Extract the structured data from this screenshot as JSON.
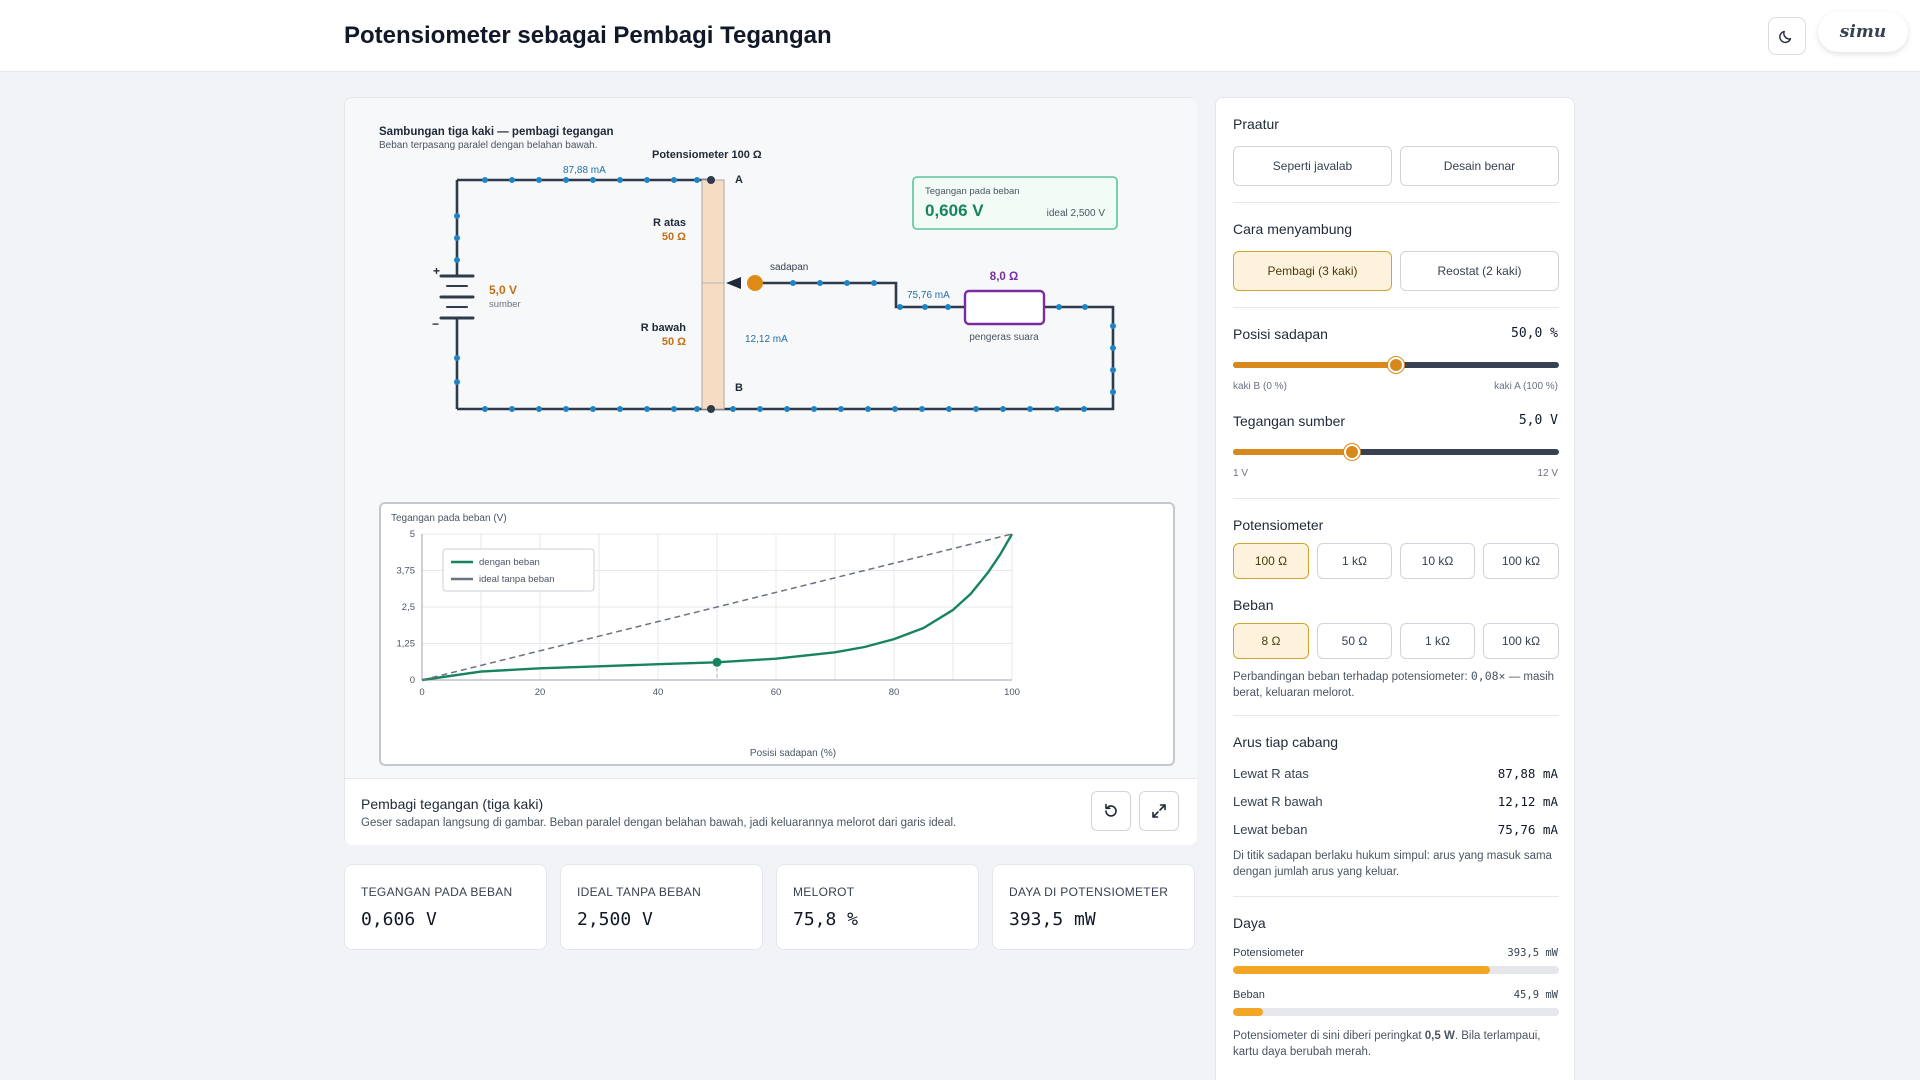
{
  "header": {
    "title": "Potensiometer sebagai Pembagi Tegangan",
    "logo": "simu"
  },
  "circuit": {
    "heading": "Sambungan tiga kaki — pembagi tegangan",
    "subheading": "Beban terpasang paralel dengan belahan bawah.",
    "top_current": "87,88 mA",
    "pot_label": "Potensiometer 100 Ω",
    "node_a": "A",
    "node_b": "B",
    "r_top_label": "R atas",
    "r_top_value": "50 Ω",
    "r_bottom_label": "R bawah",
    "r_bottom_value": "50 Ω",
    "source_voltage": "5,0 V",
    "source_label": "sumber",
    "plus": "+",
    "minus": "−",
    "tap_label": "sadapan",
    "bottom_current": "12,12 mA",
    "load_current": "75,76 mA",
    "load_value": "8,0 Ω",
    "load_label": "pengeras suara",
    "meter_label": "Tegangan pada beban",
    "meter_value": "0,606 V",
    "meter_ideal": "ideal 2,500 V"
  },
  "chart_data": {
    "type": "line",
    "ylabel": "Tegangan pada beban (V)",
    "xlabel": "Posisi sadapan (%)",
    "xlim": [
      0,
      100
    ],
    "ylim": [
      0,
      5
    ],
    "x_ticks": [
      "0",
      "20",
      "40",
      "60",
      "80",
      "100"
    ],
    "y_ticks": [
      "0",
      "1,25",
      "2,5",
      "3,75",
      "5"
    ],
    "grid": true,
    "legend_position": "top-left",
    "series": [
      {
        "name": "dengan beban",
        "color": "#17845f",
        "style": "solid",
        "x": [
          0,
          10,
          20,
          30,
          40,
          50,
          60,
          70,
          75,
          80,
          85,
          90,
          93,
          96,
          98,
          100
        ],
        "y": [
          0,
          0.29,
          0.4,
          0.47,
          0.54,
          0.606,
          0.73,
          0.95,
          1.13,
          1.4,
          1.78,
          2.4,
          2.95,
          3.7,
          4.3,
          5.0
        ]
      },
      {
        "name": "ideal tanpa beban",
        "color": "#6b7280",
        "style": "dashed",
        "x": [
          0,
          100
        ],
        "y": [
          0,
          5
        ]
      }
    ],
    "marker": {
      "x": 50,
      "y": 0.606
    }
  },
  "sim_footer": {
    "title": "Pembagi tegangan (tiga kaki)",
    "subtitle": "Geser sadapan langsung di gambar. Beban paralel dengan belahan bawah, jadi keluarannya melorot dari garis ideal."
  },
  "stats": [
    {
      "label": "TEGANGAN PADA BEBAN",
      "value": "0,606 V"
    },
    {
      "label": "IDEAL TANPA BEBAN",
      "value": "2,500 V"
    },
    {
      "label": "MELOROT",
      "value": "75,8 %"
    },
    {
      "label": "DAYA DI POTENSIOMETER",
      "value": "393,5 mW"
    }
  ],
  "side": {
    "preset_title": "Praatur",
    "preset_buttons": [
      "Seperti javalab",
      "Desain benar"
    ],
    "connect_title": "Cara menyambung",
    "connect_buttons": [
      "Pembagi (3 kaki)",
      "Reostat (2 kaki)"
    ],
    "tap_title": "Posisi sadapan",
    "tap_value": "50,0 %",
    "tap_fraction": 0.5,
    "tap_min": "kaki B (0 %)",
    "tap_max": "kaki A (100 %)",
    "src_title": "Tegangan sumber",
    "src_value": "5,0 V",
    "src_fraction": 0.364,
    "src_min": "1 V",
    "src_max": "12 V",
    "pot_title": "Potensiometer",
    "pot_options": [
      "100 Ω",
      "1 kΩ",
      "10 kΩ",
      "100 kΩ"
    ],
    "load_title": "Beban",
    "load_options": [
      "8 Ω",
      "50 Ω",
      "1 kΩ",
      "100 kΩ"
    ],
    "ratio_note_prefix": "Perbandingan beban terhadap potensiometer:",
    "ratio_value": "0,08×",
    "ratio_note_suffix": "— masih berat, keluaran melorot.",
    "currents_title": "Arus tiap cabang",
    "currents": [
      {
        "label": "Lewat R atas",
        "value": "87,88 mA"
      },
      {
        "label": "Lewat R bawah",
        "value": "12,12 mA"
      },
      {
        "label": "Lewat beban",
        "value": "75,76 mA"
      }
    ],
    "currents_note": "Di titik sadapan berlaku hukum simpul: arus yang masuk sama dengan jumlah arus yang keluar.",
    "power_title": "Daya",
    "power": [
      {
        "label": "Potensiometer",
        "value": "393,5 mW",
        "fraction": 0.787
      },
      {
        "label": "Beban",
        "value": "45,9 mW",
        "fraction": 0.092
      }
    ],
    "power_note_prefix": "Potensiometer di sini diberi peringkat",
    "power_rating": "0,5 W",
    "power_note_suffix": ". Bila terlampaui, kartu daya berubah merah."
  }
}
